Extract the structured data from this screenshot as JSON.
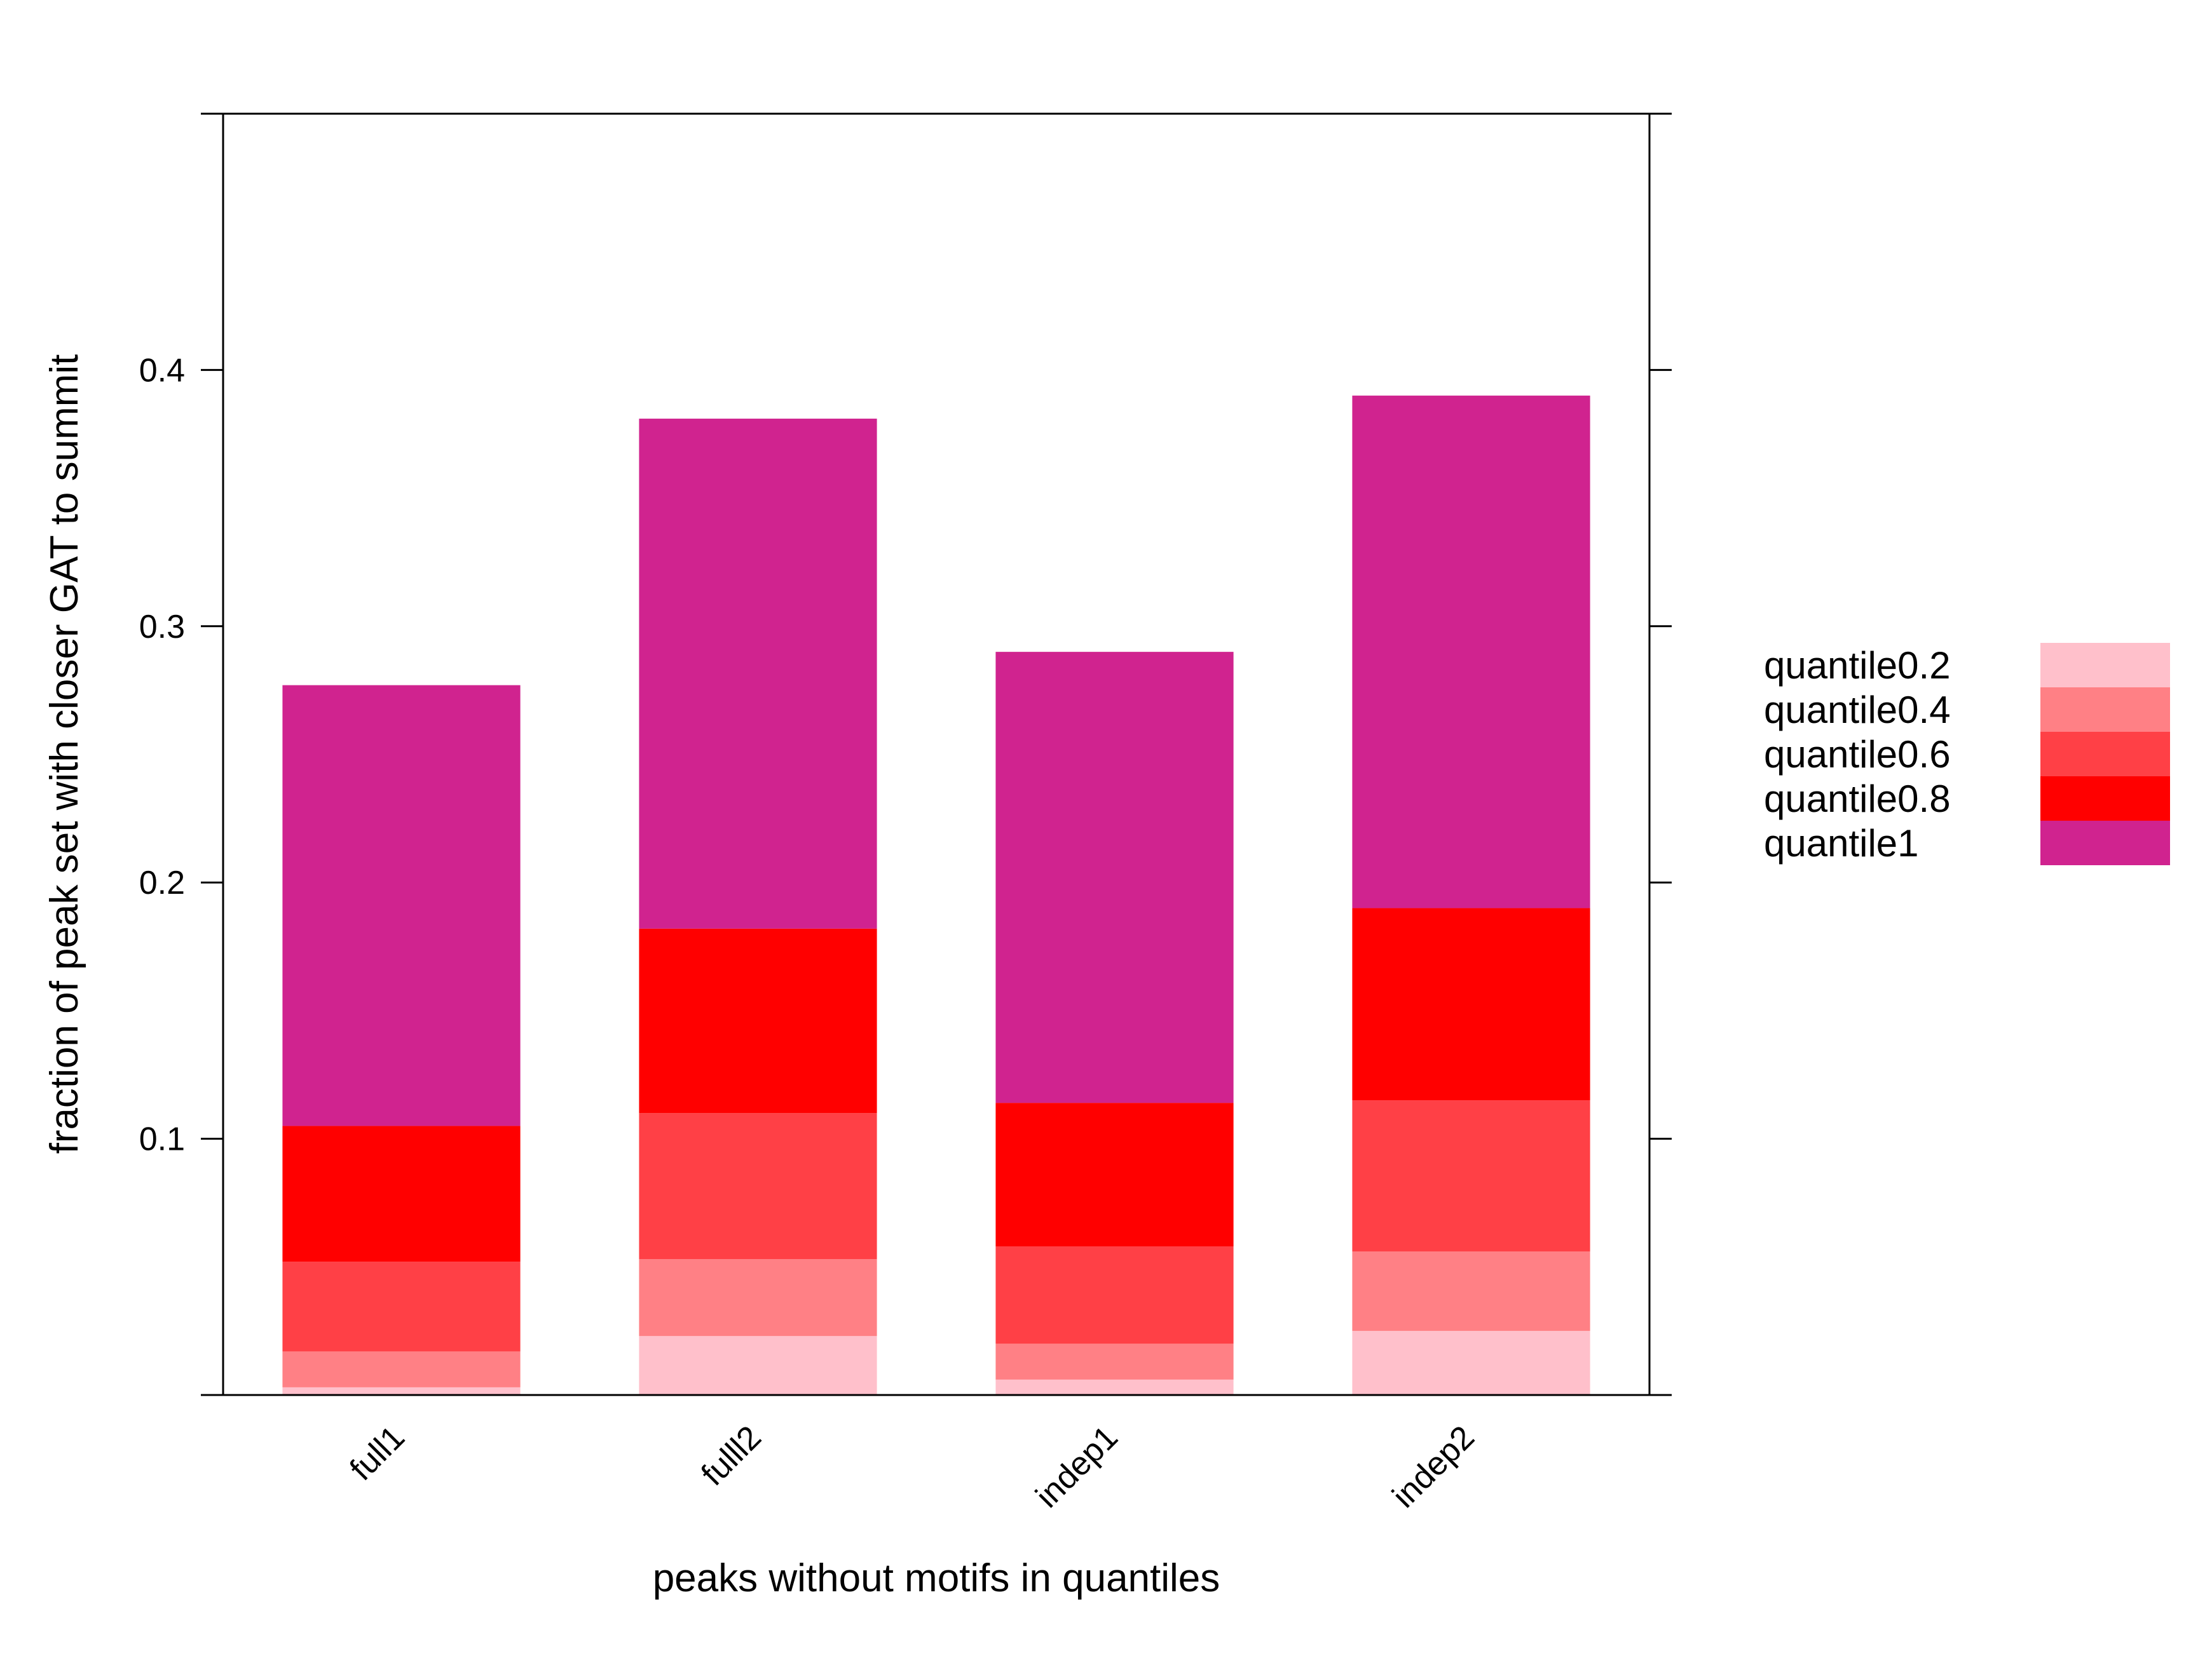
{
  "chart_data": {
    "type": "bar",
    "stacked": true,
    "categories": [
      "full1",
      "fulll2",
      "indep1",
      "indep2"
    ],
    "series": [
      {
        "name": "quantile0.2",
        "color": "#FFC0CB",
        "values": [
          0.003,
          0.023,
          0.006,
          0.025
        ]
      },
      {
        "name": "quantile0.4",
        "color": "#FF8085",
        "values": [
          0.014,
          0.03,
          0.014,
          0.031
        ]
      },
      {
        "name": "quantile0.6",
        "color": "#FF4046",
        "values": [
          0.035,
          0.057,
          0.038,
          0.059
        ]
      },
      {
        "name": "quantile0.8",
        "color": "#FF0000",
        "values": [
          0.053,
          0.072,
          0.056,
          0.075
        ]
      },
      {
        "name": "quantile1",
        "color": "#D0238F",
        "values": [
          0.172,
          0.199,
          0.176,
          0.2
        ]
      }
    ],
    "xlabel": "peaks without motifs in quantiles",
    "ylabel": "fraction of peak set with closer GAT to summit",
    "ylim": [
      0,
      0.5
    ],
    "yticks": [
      0.1,
      0.2,
      0.3,
      0.4
    ],
    "ytick_labels": [
      "0.1",
      "0.2",
      "0.3",
      "0.4"
    ],
    "grid": false,
    "legend_position": "right"
  }
}
